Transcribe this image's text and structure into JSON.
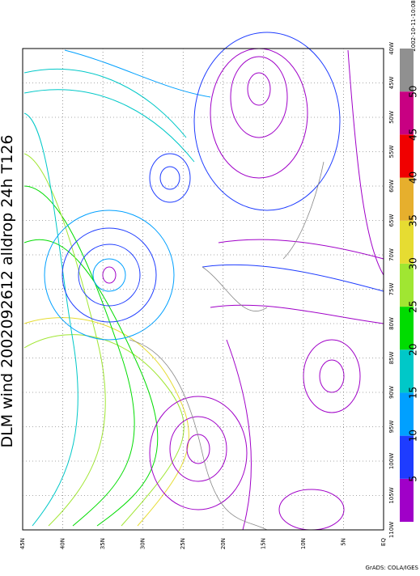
{
  "title": "DLM wind 2002092612 alldrop 24h T126",
  "timestamp": "2002-10-11-10:08",
  "credit": "GrADS: COLA/IGES",
  "lat_labels": [
    "45N",
    "40N",
    "35N",
    "30N",
    "25N",
    "20N",
    "15N",
    "10N",
    "5N",
    "EQ"
  ],
  "lon_labels": [
    "40W",
    "45W",
    "50W",
    "55W",
    "60W",
    "65W",
    "70W",
    "75W",
    "80W",
    "85W",
    "90W",
    "95W",
    "100W",
    "105W",
    "110W"
  ],
  "colorbar": {
    "labels": [
      "5",
      "10",
      "15",
      "20",
      "25",
      "30",
      "35",
      "40",
      "45",
      "50"
    ],
    "colors": [
      "#a000c8",
      "#1e3cff",
      "#00a0ff",
      "#00c8c8",
      "#00dc00",
      "#a0e632",
      "#e6dc32",
      "#e6af2d",
      "#f00000",
      "#c80082",
      "#909090"
    ]
  }
}
